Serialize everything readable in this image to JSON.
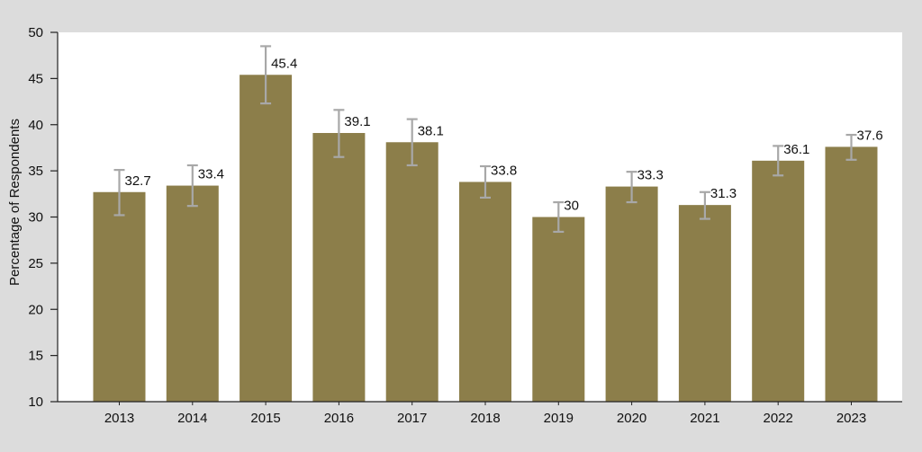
{
  "chart_data": {
    "type": "bar",
    "title": "",
    "xlabel": "",
    "ylabel": "Percentage of Respondents",
    "ylim": [
      10,
      50
    ],
    "yticks": [
      10,
      15,
      20,
      25,
      30,
      35,
      40,
      45,
      50
    ],
    "grid": false,
    "categories": [
      "2013",
      "2014",
      "2015",
      "2016",
      "2017",
      "2018",
      "2019",
      "2020",
      "2021",
      "2022",
      "2023"
    ],
    "values": [
      32.7,
      33.4,
      45.4,
      39.1,
      38.1,
      33.8,
      30,
      33.3,
      31.3,
      36.1,
      37.6
    ],
    "data_labels": [
      "32.7",
      "33.4",
      "45.4",
      "39.1",
      "38.1",
      "33.8",
      "30",
      "33.3",
      "31.3",
      "36.1",
      "37.6"
    ],
    "error_bars": [
      {
        "low": 30.2,
        "high": 35.1
      },
      {
        "low": 31.2,
        "high": 35.6
      },
      {
        "low": 42.3,
        "high": 48.5
      },
      {
        "low": 36.5,
        "high": 41.6
      },
      {
        "low": 35.6,
        "high": 40.6
      },
      {
        "low": 32.1,
        "high": 35.5
      },
      {
        "low": 28.4,
        "high": 31.6
      },
      {
        "low": 31.6,
        "high": 34.9
      },
      {
        "low": 29.8,
        "high": 32.7
      },
      {
        "low": 34.5,
        "high": 37.7
      },
      {
        "low": 36.2,
        "high": 38.9
      }
    ],
    "colors": {
      "bar": "#8c7e4a",
      "error_bar": "#a8a8a8",
      "plot_background": "#ffffff",
      "page_background": "#dcdcdc",
      "axis": "#222222"
    }
  }
}
